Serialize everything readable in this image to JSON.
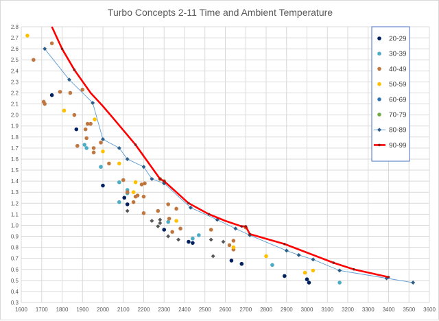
{
  "chart_data": {
    "type": "scatter",
    "title": "Turbo Concepts 2-11 Time and Ambient Temperature",
    "xlabel": "",
    "ylabel": "",
    "xlim": [
      1600,
      3600
    ],
    "ylim": [
      0.3,
      2.8
    ],
    "xticks": [
      1600,
      1700,
      1800,
      1900,
      2000,
      2100,
      2200,
      2300,
      2400,
      2500,
      2600,
      2700,
      2800,
      2900,
      3000,
      3100,
      3200,
      3300,
      3400,
      3500,
      3600
    ],
    "yticks": [
      0.3,
      0.4,
      0.5,
      0.6,
      0.7,
      0.8,
      0.9,
      1.0,
      1.1,
      1.2,
      1.3,
      1.4,
      1.5,
      1.6,
      1.7,
      1.8,
      1.9,
      2.0,
      2.1,
      2.2,
      2.3,
      2.4,
      2.5,
      2.6,
      2.7,
      2.8
    ],
    "grid": true,
    "legend_position": "right",
    "series": [
      {
        "name": "20-29",
        "color": "#002060",
        "marker": "circle",
        "line": false,
        "points": [
          [
            1750,
            2.18
          ],
          [
            1870,
            1.87
          ],
          [
            2000,
            1.36
          ],
          [
            2105,
            1.25
          ],
          [
            2120,
            1.19
          ],
          [
            2300,
            0.96
          ],
          [
            2420,
            0.85
          ],
          [
            2440,
            0.84
          ],
          [
            2630,
            0.68
          ],
          [
            2680,
            0.65
          ],
          [
            2890,
            0.54
          ],
          [
            3000,
            0.51
          ],
          [
            3010,
            0.48
          ]
        ]
      },
      {
        "name": "30-39",
        "color": "#4bacc6",
        "marker": "circle",
        "line": false,
        "points": [
          [
            1910,
            1.73
          ],
          [
            1920,
            1.7
          ],
          [
            1990,
            1.53
          ],
          [
            2080,
            1.39
          ],
          [
            2080,
            1.21
          ],
          [
            2120,
            1.32
          ],
          [
            2120,
            1.29
          ],
          [
            2320,
            1.03
          ],
          [
            2440,
            0.88
          ],
          [
            2470,
            0.91
          ],
          [
            2830,
            0.64
          ],
          [
            3160,
            0.48
          ]
        ]
      },
      {
        "name": "40-49",
        "color": "#c0773f",
        "marker": "circle",
        "line": false,
        "points": [
          [
            1660,
            2.5
          ],
          [
            1710,
            2.12
          ],
          [
            1715,
            2.1
          ],
          [
            1750,
            2.65
          ],
          [
            1790,
            2.21
          ],
          [
            1840,
            2.2
          ],
          [
            1860,
            2.0
          ],
          [
            1875,
            1.72
          ],
          [
            1900,
            2.23
          ],
          [
            1915,
            1.87
          ],
          [
            1920,
            1.79
          ],
          [
            1925,
            1.92
          ],
          [
            1940,
            1.92
          ],
          [
            1955,
            1.7
          ],
          [
            1955,
            1.66
          ],
          [
            1990,
            1.75
          ],
          [
            2030,
            1.56
          ],
          [
            2100,
            1.41
          ],
          [
            2120,
            1.3
          ],
          [
            2150,
            1.21
          ],
          [
            2160,
            1.26
          ],
          [
            2170,
            1.27
          ],
          [
            2190,
            1.37
          ],
          [
            2200,
            1.11
          ],
          [
            2205,
            1.38
          ],
          [
            2200,
            1.26
          ],
          [
            2270,
            1.13
          ],
          [
            2280,
            1.42
          ],
          [
            2300,
            1.4
          ],
          [
            2320,
            1.19
          ],
          [
            2325,
            1.06
          ],
          [
            2340,
            0.94
          ],
          [
            2360,
            1.15
          ],
          [
            2380,
            0.97
          ],
          [
            2530,
            0.96
          ],
          [
            2620,
            0.82
          ],
          [
            2640,
            0.86
          ],
          [
            2640,
            0.78
          ],
          [
            2700,
            0.98
          ]
        ]
      },
      {
        "name": "50-59",
        "color": "#ffc000",
        "marker": "circle",
        "line": false,
        "points": [
          [
            1630,
            2.72
          ],
          [
            1810,
            2.04
          ],
          [
            1960,
            1.96
          ],
          [
            2000,
            1.67
          ],
          [
            2080,
            1.56
          ],
          [
            2150,
            1.3
          ],
          [
            2160,
            1.39
          ],
          [
            2360,
            1.04
          ],
          [
            2640,
            0.8
          ],
          [
            2800,
            0.72
          ],
          [
            2990,
            0.57
          ],
          [
            3030,
            0.59
          ]
        ]
      },
      {
        "name": "60-69",
        "color": "#2e75b6",
        "marker": "circle",
        "line": false,
        "points": []
      },
      {
        "name": "70-79",
        "color": "#70ad47",
        "marker": "circle",
        "line": false,
        "points": []
      },
      {
        "name": "80-89",
        "color": "#2e5f8a",
        "marker": "diamond",
        "line": true,
        "line_color": "#5b9bd5",
        "points": [
          [
            1715,
            2.6
          ],
          [
            1835,
            2.32
          ],
          [
            1950,
            2.11
          ],
          [
            2000,
            1.78
          ],
          [
            2080,
            1.7
          ],
          [
            2120,
            1.6
          ],
          [
            2200,
            1.53
          ],
          [
            2240,
            1.42
          ],
          [
            2300,
            1.38
          ],
          [
            2430,
            1.16
          ],
          [
            2560,
            1.05
          ],
          [
            2650,
            0.97
          ],
          [
            2720,
            0.91
          ],
          [
            2900,
            0.77
          ],
          [
            2960,
            0.73
          ],
          [
            3030,
            0.69
          ],
          [
            3160,
            0.59
          ],
          [
            3390,
            0.52
          ],
          [
            3520,
            0.48
          ]
        ]
      },
      {
        "name": "80-89 (grey)",
        "color": "#595959",
        "marker": "diamond",
        "line": false,
        "legend": false,
        "points": [
          [
            2120,
            1.13
          ],
          [
            2240,
            1.04
          ],
          [
            2270,
            0.99
          ],
          [
            2280,
            1.05
          ],
          [
            2280,
            1.02
          ],
          [
            2320,
            0.9
          ],
          [
            2370,
            0.87
          ],
          [
            2530,
            0.87
          ],
          [
            2540,
            0.72
          ],
          [
            2590,
            0.85
          ]
        ]
      },
      {
        "name": "90-99",
        "color": "#e41a1c",
        "marker": "line",
        "line": true,
        "curve_color": "#ff0000",
        "points": [
          [
            1750,
            2.8
          ],
          [
            1800,
            2.6
          ],
          [
            1860,
            2.41
          ],
          [
            1940,
            2.2
          ],
          [
            2000,
            2.08
          ],
          [
            2060,
            1.95
          ],
          [
            2160,
            1.73
          ],
          [
            2280,
            1.42
          ],
          [
            2300,
            1.4
          ],
          [
            2420,
            1.2
          ],
          [
            2520,
            1.1
          ],
          [
            2600,
            1.04
          ],
          [
            2680,
            0.99
          ],
          [
            2700,
            0.99
          ],
          [
            2720,
            0.92
          ],
          [
            2890,
            0.83
          ],
          [
            3130,
            0.66
          ],
          [
            3230,
            0.6
          ],
          [
            3400,
            0.53
          ]
        ],
        "marker_points": [
          [
            1800,
            2.6
          ],
          [
            1860,
            2.41
          ],
          [
            2160,
            1.73
          ],
          [
            2280,
            1.42
          ],
          [
            2300,
            1.4
          ],
          [
            2420,
            1.2
          ],
          [
            2520,
            1.1
          ],
          [
            2680,
            0.99
          ],
          [
            2700,
            0.99
          ],
          [
            2720,
            0.92
          ],
          [
            2890,
            0.83
          ],
          [
            3130,
            0.66
          ],
          [
            3230,
            0.6
          ],
          [
            3400,
            0.53
          ]
        ]
      }
    ]
  }
}
